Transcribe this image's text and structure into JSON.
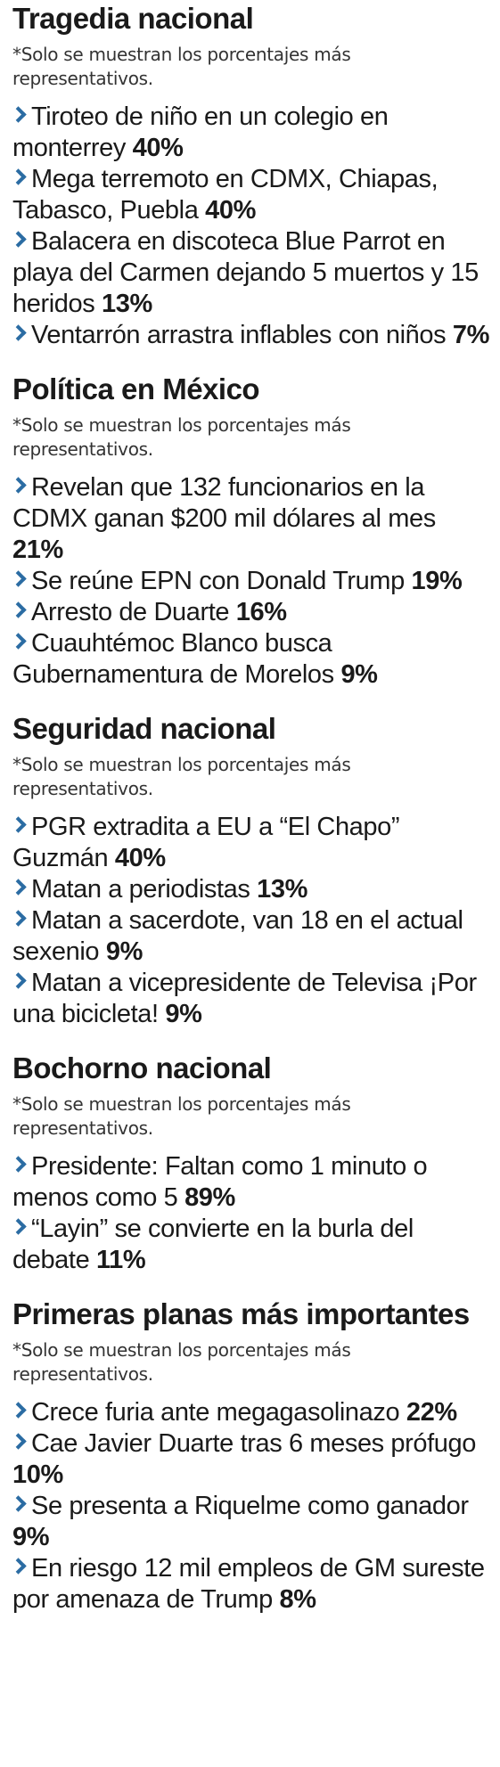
{
  "sections": [
    {
      "title": "Tragedia nacional",
      "note": "*Solo se muestran los porcentajes más representativos.",
      "items": [
        {
          "text": "Tiroteo de niño en un colegio en monterrey",
          "percent": "40%"
        },
        {
          "text": "Mega terremoto en CDMX, Chiapas, Tabasco, Puebla",
          "percent": "40%"
        },
        {
          "text": "Balacera en discoteca Blue Parrot en playa del Carmen dejando 5 muertos y 15 heridos",
          "percent": "13%"
        },
        {
          "text": "Ventarrón arrastra inflables con niños",
          "percent": "7%"
        }
      ]
    },
    {
      "title": "Política en México",
      "note": "*Solo se muestran los porcentajes más representativos.",
      "items": [
        {
          "text": "Revelan que 132 funcionarios en la CDMX ganan $200 mil dólares al mes",
          "percent": "21%"
        },
        {
          "text": "Se reúne EPN con Donald Trump",
          "percent": "19%"
        },
        {
          "text": "Arresto de Duarte",
          "percent": "16%"
        },
        {
          "text": "Cuauhtémoc Blanco busca Gubernamentura de Morelos",
          "percent": "9%"
        }
      ]
    },
    {
      "title": "Seguridad nacional",
      "note": "*Solo se muestran los porcentajes más representativos.",
      "items": [
        {
          "text": "PGR extradita a EU a “El Chapo” Guzmán",
          "percent": "40%"
        },
        {
          "text": "Matan a periodistas",
          "percent": "13%"
        },
        {
          "text": "Matan a sacerdote, van 18 en el actual sexenio",
          "percent": "9%"
        },
        {
          "text": "Matan a vicepresidente de Televisa ¡Por una bicicleta!",
          "percent": "9%"
        }
      ]
    },
    {
      "title": "Bochorno nacional",
      "note": "*Solo se muestran los porcentajes más representativos.",
      "items": [
        {
          "text": "Presidente: Faltan como 1 minuto o menos como 5",
          "percent": "89%"
        },
        {
          "text": "“Layin” se convierte en la burla del debate",
          "percent": "11%"
        }
      ]
    },
    {
      "title": "Primeras planas más importantes",
      "note": "*Solo se muestran los porcentajes más representativos.",
      "items": [
        {
          "text": "Crece furia ante megagasolinazo",
          "percent": "22%"
        },
        {
          "text": "Cae Javier Duarte tras 6 meses prófugo",
          "percent": "10%"
        },
        {
          "text": "Se presenta a Riquelme como ganador",
          "percent": "9%"
        },
        {
          "text": "En riesgo 12 mil empleos de GM sureste por amenaza de Trump",
          "percent": "8%"
        }
      ]
    }
  ]
}
